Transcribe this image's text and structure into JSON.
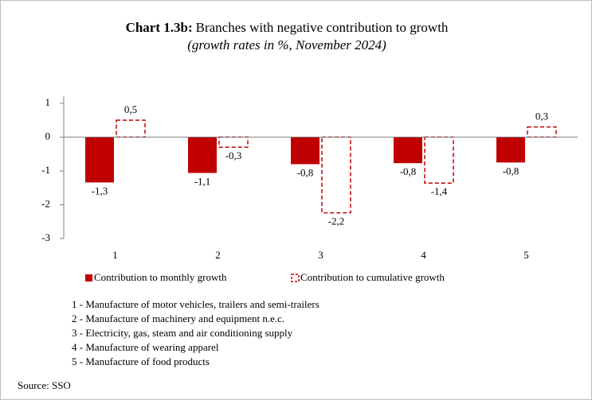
{
  "chart_data": {
    "type": "bar",
    "title_label": "Chart 1.3b:",
    "title": "Branches with negative contribution to growth",
    "subtitle": "(growth rates in %, November 2024)",
    "categories": [
      "1",
      "2",
      "3",
      "4",
      "5"
    ],
    "series": [
      {
        "name": "Contribution to monthly growth",
        "color": "#c00000",
        "style": "solid",
        "values": [
          -1.34,
          -1.06,
          -0.8,
          -0.77,
          -0.75
        ],
        "value_labels": [
          "-1,3",
          "-1,1",
          "-0,8",
          "-0,8",
          "-0,8"
        ]
      },
      {
        "name": "Contribution to cumulative growth",
        "color": "#c00000",
        "style": "dashed",
        "values": [
          0.5,
          -0.3,
          -2.24,
          -1.36,
          0.3
        ],
        "value_labels": [
          "0,5",
          "-0,3",
          "-2,2",
          "-1,4",
          "0,3"
        ]
      }
    ],
    "ylim": [
      -3,
      1.2
    ],
    "yticks": [
      1,
      0,
      -1,
      -2,
      -3
    ],
    "grid": false,
    "notes": [
      "1 - Manufacture of motor vehicles, trailers and semi-trailers",
      "2 - Manufacture of machinery and equipment n.e.c.",
      "3 - Electricity, gas, steam and air conditioning supply",
      "4 - Manufacture of wearing apparel",
      "5 - Manufacture of food products"
    ],
    "source": "Source: SSO"
  }
}
